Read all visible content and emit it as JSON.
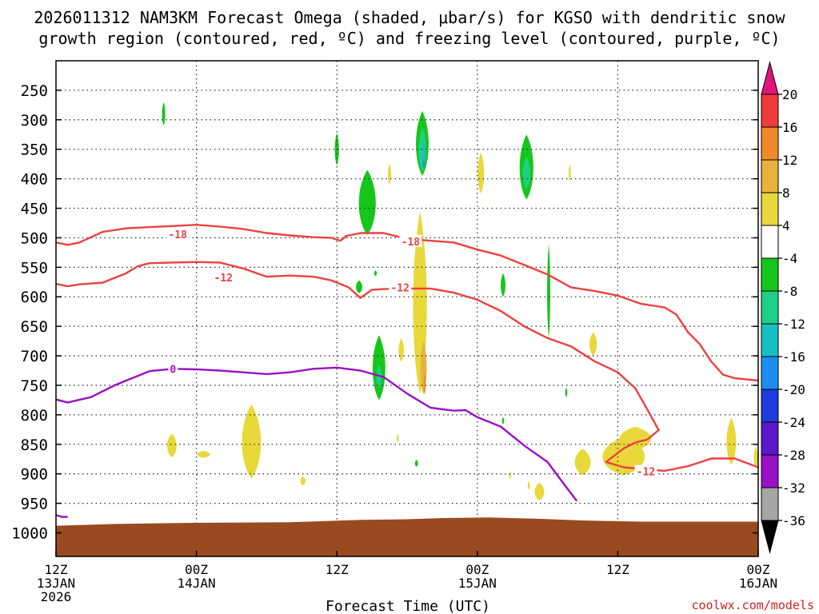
{
  "chart_data": {
    "type": "time-height cross-section",
    "title_line1": "2026011312 NAM3KM Forecast Omega (shaded, μbar/s) for KGSO with dendritic snow",
    "title_line2": "growth region (contoured, red, ºC) and freezing level (contoured, purple, ºC)",
    "xlabel": "Forecast Time (UTC)",
    "credit": "coolwx.com/models",
    "x_range_hours": [
      0,
      60
    ],
    "x_ticks": [
      {
        "hour": 0,
        "lines": [
          "12Z",
          "13JAN",
          "2026"
        ]
      },
      {
        "hour": 12,
        "lines": [
          "00Z",
          "14JAN"
        ]
      },
      {
        "hour": 24,
        "lines": [
          "12Z"
        ]
      },
      {
        "hour": 36,
        "lines": [
          "00Z",
          "15JAN"
        ]
      },
      {
        "hour": 48,
        "lines": [
          "12Z"
        ]
      },
      {
        "hour": 60,
        "lines": [
          "00Z",
          "16JAN"
        ]
      }
    ],
    "y_axis": {
      "unit": "hPa",
      "range": [
        1040,
        200
      ],
      "reversed": true
    },
    "y_ticks": [
      250,
      300,
      350,
      400,
      450,
      500,
      550,
      600,
      650,
      700,
      750,
      800,
      850,
      900,
      950,
      1000
    ],
    "colorbar": {
      "labels": [
        "20",
        "16",
        "12",
        "8",
        "4",
        "-4",
        "-8",
        "-12",
        "-16",
        "-20",
        "-24",
        "-28",
        "-32",
        "-36"
      ],
      "bands": [
        {
          "from": 16,
          "to": 20,
          "color": "#ee3c3c"
        },
        {
          "from": 12,
          "to": 16,
          "color": "#f08a28"
        },
        {
          "from": 8,
          "to": 12,
          "color": "#eab23c"
        },
        {
          "from": 4,
          "to": 8,
          "color": "#e8d83a"
        },
        {
          "from": -4,
          "to": 4,
          "color": "#ffffff"
        },
        {
          "from": -8,
          "to": -4,
          "color": "#16c61a"
        },
        {
          "from": -12,
          "to": -8,
          "color": "#1ecf86"
        },
        {
          "from": -16,
          "to": -12,
          "color": "#16bfc4"
        },
        {
          "from": -20,
          "to": -16,
          "color": "#1c8ef0"
        },
        {
          "from": -24,
          "to": -20,
          "color": "#1e3cdc"
        },
        {
          "from": -28,
          "to": -24,
          "color": "#5a18c8"
        },
        {
          "from": -32,
          "to": -28,
          "color": "#9a10c6"
        },
        {
          "from": -36,
          "to": -32,
          "color": "#a6a6a6"
        }
      ],
      "over_color": "#e0147a",
      "under_color": "#000000"
    },
    "contours": [
      {
        "name": "-18 °C",
        "label": "-18",
        "color": "#ee4040",
        "label_positions": [
          [
            10.4,
            494
          ],
          [
            30.3,
            506
          ]
        ],
        "points": [
          [
            0,
            508
          ],
          [
            1,
            512
          ],
          [
            2,
            508
          ],
          [
            4,
            490
          ],
          [
            6,
            484
          ],
          [
            8,
            482
          ],
          [
            10,
            480
          ],
          [
            12,
            478
          ],
          [
            14,
            481
          ],
          [
            16,
            485
          ],
          [
            18,
            492
          ],
          [
            20,
            496
          ],
          [
            22,
            499
          ],
          [
            23.5,
            500
          ],
          [
            24.3,
            505
          ],
          [
            24.8,
            497
          ],
          [
            26,
            492
          ],
          [
            28,
            492
          ],
          [
            30,
            502
          ],
          [
            32,
            505
          ],
          [
            34,
            508
          ],
          [
            36,
            520
          ],
          [
            38,
            530
          ],
          [
            40,
            546
          ],
          [
            42,
            562
          ],
          [
            44,
            584
          ],
          [
            46,
            590
          ],
          [
            48,
            598
          ],
          [
            50,
            612
          ],
          [
            52,
            618
          ],
          [
            53,
            630
          ],
          [
            54,
            660
          ],
          [
            55,
            680
          ],
          [
            56,
            710
          ],
          [
            57,
            732
          ],
          [
            58,
            738
          ],
          [
            60,
            742
          ]
        ]
      },
      {
        "name": "-12 °C",
        "label": "-12",
        "color": "#ee4040",
        "label_positions": [
          [
            14.3,
            567
          ],
          [
            29.4,
            584
          ],
          [
            50.4,
            896
          ]
        ],
        "points": [
          [
            0,
            578
          ],
          [
            1,
            582
          ],
          [
            2,
            579
          ],
          [
            4,
            576
          ],
          [
            6,
            560
          ],
          [
            7,
            548
          ],
          [
            8,
            543
          ],
          [
            10,
            542
          ],
          [
            12,
            541
          ],
          [
            14,
            542
          ],
          [
            16,
            552
          ],
          [
            18,
            566
          ],
          [
            20,
            564
          ],
          [
            22,
            566
          ],
          [
            23.5,
            572
          ],
          [
            25,
            584
          ],
          [
            26,
            602
          ],
          [
            27,
            588
          ],
          [
            28,
            587
          ],
          [
            30,
            586
          ],
          [
            32,
            586
          ],
          [
            34,
            593
          ],
          [
            36,
            605
          ],
          [
            38,
            624
          ],
          [
            40,
            650
          ],
          [
            42,
            670
          ],
          [
            44,
            684
          ],
          [
            46,
            709
          ],
          [
            48,
            728
          ],
          [
            49.5,
            755
          ],
          [
            50.5,
            790
          ],
          [
            51.5,
            826
          ],
          [
            50.5,
            842
          ],
          [
            49.5,
            847
          ],
          [
            48.5,
            857
          ],
          [
            47,
            880
          ],
          [
            48.5,
            889
          ],
          [
            52,
            895
          ],
          [
            54,
            887
          ],
          [
            56,
            874
          ],
          [
            58,
            874
          ],
          [
            60,
            889
          ]
        ]
      },
      {
        "name": "0 °C freezing level",
        "label": "0",
        "color": "#9a10c6",
        "label_positions": [
          [
            10,
            722
          ]
        ],
        "points": [
          [
            0,
            774
          ],
          [
            1,
            779
          ],
          [
            3,
            770
          ],
          [
            5,
            750
          ],
          [
            6,
            742
          ],
          [
            8,
            726
          ],
          [
            10,
            722
          ],
          [
            12,
            723
          ],
          [
            14,
            725
          ],
          [
            16,
            728
          ],
          [
            18,
            731
          ],
          [
            20,
            728
          ],
          [
            22,
            722
          ],
          [
            24,
            720
          ],
          [
            26,
            725
          ],
          [
            28,
            736
          ],
          [
            30,
            764
          ],
          [
            32,
            788
          ],
          [
            34,
            793
          ],
          [
            35,
            792
          ],
          [
            36,
            804
          ],
          [
            38,
            820
          ],
          [
            40,
            852
          ],
          [
            42,
            880
          ],
          [
            43.5,
            920
          ],
          [
            44.5,
            946
          ]
        ]
      },
      {
        "name": "surface freezing segment",
        "label": "",
        "color": "#9a10c6",
        "label_positions": [],
        "points": [
          [
            0,
            970
          ],
          [
            0.5,
            973
          ],
          [
            1,
            973
          ]
        ]
      }
    ],
    "shaded_regions": [
      {
        "value": "-8 to -4",
        "color": "#16c61a",
        "center": [
          9.2,
          290
        ],
        "size": [
          0.3,
          40
        ]
      },
      {
        "value": "-8 to -4",
        "color": "#16c61a",
        "center": [
          24.0,
          350
        ],
        "size": [
          0.4,
          55
        ]
      },
      {
        "value": "-8 to -4",
        "color": "#16c61a",
        "center": [
          26.6,
          440
        ],
        "size": [
          1.6,
          110
        ]
      },
      {
        "value": "-8 to -4",
        "color": "#16c61a",
        "center": [
          25.9,
          583
        ],
        "size": [
          0.6,
          22
        ]
      },
      {
        "value": "-8 to -4",
        "color": "#16c61a",
        "center": [
          27.3,
          560
        ],
        "size": [
          0.25,
          10
        ]
      },
      {
        "value": "-8 to -4",
        "color": "#16c61a",
        "center": [
          27.6,
          720
        ],
        "size": [
          1.2,
          110
        ]
      },
      {
        "value": "-12 to -8",
        "color": "#1ecf86",
        "center": [
          27.6,
          735
        ],
        "size": [
          0.5,
          40
        ]
      },
      {
        "value": "-16 to -12",
        "color": "#16bfc4",
        "center": [
          27.6,
          745
        ],
        "size": [
          0.2,
          10
        ]
      },
      {
        "value": "-8 to -4",
        "color": "#16c61a",
        "center": [
          31.3,
          340
        ],
        "size": [
          1.2,
          110
        ]
      },
      {
        "value": "-12 to -8",
        "color": "#1ecf86",
        "center": [
          31.3,
          350
        ],
        "size": [
          0.7,
          75
        ]
      },
      {
        "value": "-16 to -12",
        "color": "#16bfc4",
        "center": [
          31.4,
          360
        ],
        "size": [
          0.4,
          45
        ]
      },
      {
        "value": "-20 to -16",
        "color": "#1c8ef0",
        "center": [
          31.4,
          375
        ],
        "size": [
          0.2,
          15
        ]
      },
      {
        "value": "-8 to -4",
        "color": "#16c61a",
        "center": [
          38.2,
          580
        ],
        "size": [
          0.45,
          40
        ]
      },
      {
        "value": "-8 to -4",
        "color": "#16c61a",
        "center": [
          38.2,
          810
        ],
        "size": [
          0.2,
          12
        ]
      },
      {
        "value": "-8 to -4",
        "color": "#16c61a",
        "center": [
          40.2,
          380
        ],
        "size": [
          1.3,
          110
        ]
      },
      {
        "value": "-12 to -8",
        "color": "#1ecf86",
        "center": [
          40.2,
          390
        ],
        "size": [
          0.7,
          55
        ]
      },
      {
        "value": "-8 to -4",
        "color": "#16c61a",
        "center": [
          42.1,
          590
        ],
        "size": [
          0.3,
          160
        ]
      },
      {
        "value": "-8 to -4",
        "color": "#16c61a",
        "center": [
          43.6,
          762
        ],
        "size": [
          0.2,
          16
        ]
      },
      {
        "value": "-8 to -4",
        "color": "#16c61a",
        "center": [
          30.8,
          882
        ],
        "size": [
          0.3,
          12
        ]
      },
      {
        "value": "4 to 8",
        "color": "#e8d83a",
        "center": [
          28.5,
          392
        ],
        "size": [
          0.3,
          35
        ]
      },
      {
        "value": "4 to 8",
        "color": "#e8d83a",
        "center": [
          36.3,
          390
        ],
        "size": [
          0.6,
          70
        ]
      },
      {
        "value": "4 to 8",
        "color": "#e8d83a",
        "center": [
          43.9,
          390
        ],
        "size": [
          0.2,
          30
        ]
      },
      {
        "value": "4 to 8",
        "color": "#e8d83a",
        "center": [
          31.1,
          610
        ],
        "size": [
          1.3,
          310
        ]
      },
      {
        "value": "8 to 12",
        "color": "#eab23c",
        "center": [
          31.4,
          720
        ],
        "size": [
          0.6,
          90
        ]
      },
      {
        "value": "12 to 16",
        "color": "#f08a28",
        "center": [
          31.5,
          748
        ],
        "size": [
          0.12,
          35
        ]
      },
      {
        "value": "4 to 8",
        "color": "#e8d83a",
        "center": [
          29.5,
          690
        ],
        "size": [
          0.5,
          40
        ]
      },
      {
        "value": "4 to 8",
        "color": "#e8d83a",
        "center": [
          29.2,
          840
        ],
        "size": [
          0.15,
          15
        ]
      },
      {
        "value": "4 to 8",
        "color": "#e8d83a",
        "center": [
          9.9,
          852
        ],
        "size": [
          0.9,
          40
        ]
      },
      {
        "value": "4 to 8",
        "color": "#e8d83a",
        "center": [
          16.7,
          845
        ],
        "size": [
          1.8,
          125
        ]
      },
      {
        "value": "4 to 8",
        "color": "#e8d83a",
        "center": [
          12.6,
          867
        ],
        "size": [
          1.2,
          12
        ]
      },
      {
        "value": "4 to 8",
        "color": "#e8d83a",
        "center": [
          21.1,
          912
        ],
        "size": [
          0.5,
          15
        ]
      },
      {
        "value": "4 to 8",
        "color": "#e8d83a",
        "center": [
          45.9,
          680
        ],
        "size": [
          0.7,
          40
        ]
      },
      {
        "value": "4 to 8",
        "color": "#e8d83a",
        "center": [
          48.5,
          870
        ],
        "size": [
          4.0,
          65
        ]
      },
      {
        "value": "4 to 8",
        "color": "#e8d83a",
        "center": [
          49.5,
          840
        ],
        "size": [
          3.0,
          40
        ]
      },
      {
        "value": "4 to 8",
        "color": "#e8d83a",
        "center": [
          45.0,
          880
        ],
        "size": [
          1.5,
          45
        ]
      },
      {
        "value": "4 to 8",
        "color": "#e8d83a",
        "center": [
          41.3,
          930
        ],
        "size": [
          0.9,
          30
        ]
      },
      {
        "value": "4 to 8",
        "color": "#e8d83a",
        "center": [
          57.7,
          845
        ],
        "size": [
          0.9,
          80
        ]
      },
      {
        "value": "4 to 8",
        "color": "#e8d83a",
        "center": [
          59.8,
          872
        ],
        "size": [
          0.4,
          35
        ]
      },
      {
        "value": "4 to 8",
        "color": "#e8d83a",
        "center": [
          38.8,
          902
        ],
        "size": [
          0.15,
          12
        ]
      },
      {
        "value": "4 to 8",
        "color": "#e8d83a",
        "center": [
          40.4,
          920
        ],
        "size": [
          0.2,
          15
        ]
      }
    ],
    "terrain": {
      "color": "#9a4a20",
      "points": [
        [
          0,
          988
        ],
        [
          5,
          985
        ],
        [
          12,
          983
        ],
        [
          20,
          982
        ],
        [
          26,
          978
        ],
        [
          30,
          977
        ],
        [
          33,
          975
        ],
        [
          37,
          974
        ],
        [
          41,
          976
        ],
        [
          45,
          979
        ],
        [
          50,
          981
        ],
        [
          55,
          981
        ],
        [
          60,
          981
        ]
      ]
    }
  }
}
